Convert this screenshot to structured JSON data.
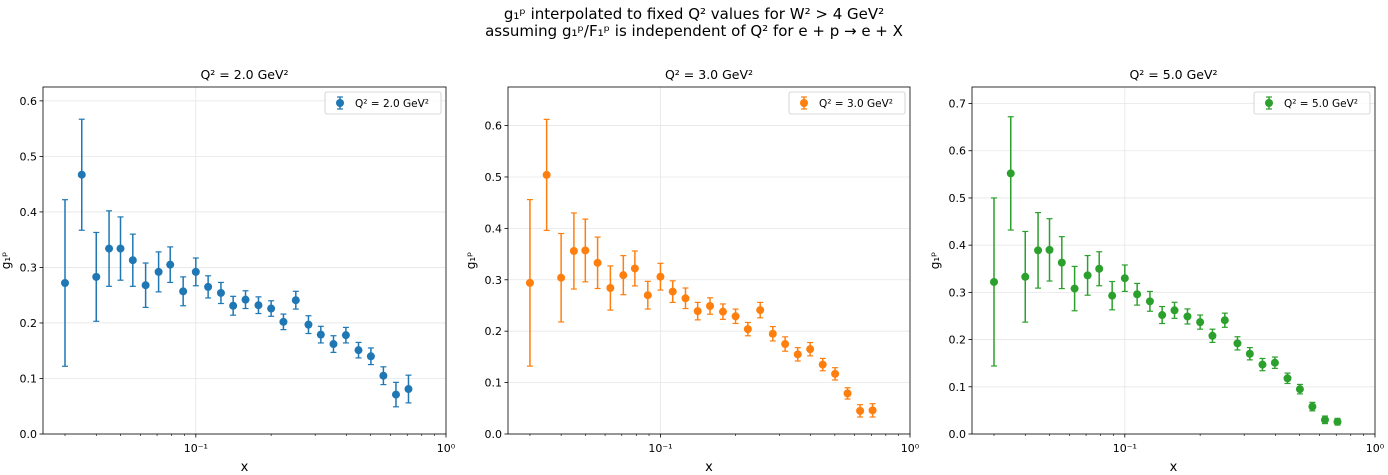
{
  "figure": {
    "suptitle_line1": "g₁ᵖ interpolated to fixed Q² values for W² > 4 GeV²",
    "suptitle_line2": "assuming g₁ᵖ/F₁ᵖ is independent of Q² for e + p → e + X"
  },
  "chart_data": [
    {
      "type": "scatter",
      "title": "Q² = 2.0 GeV²",
      "xlabel": "x",
      "ylabel": "g₁ᵖ",
      "xscale": "log",
      "xlim": [
        0.0245,
        1.0
      ],
      "ylim": [
        0.0,
        0.625
      ],
      "xticks": [
        0.1,
        1.0
      ],
      "xtick_labels": [
        "10⁻¹",
        "10⁰"
      ],
      "yticks": [
        0.0,
        0.1,
        0.2,
        0.3,
        0.4,
        0.5,
        0.6
      ],
      "ytick_labels": [
        "0.0",
        "0.1",
        "0.2",
        "0.3",
        "0.4",
        "0.5",
        "0.6"
      ],
      "grid": true,
      "legend_position": "top-right",
      "color": "#1f77b4",
      "series": [
        {
          "name": "Q² = 2.0 GeV²",
          "x": [
            0.03,
            0.035,
            0.04,
            0.045,
            0.05,
            0.056,
            0.063,
            0.071,
            0.079,
            0.089,
            0.1,
            0.112,
            0.126,
            0.141,
            0.158,
            0.178,
            0.2,
            0.224,
            0.251,
            0.282,
            0.316,
            0.355,
            0.398,
            0.447,
            0.501,
            0.562,
            0.631,
            0.708
          ],
          "y": [
            0.272,
            0.467,
            0.283,
            0.334,
            0.334,
            0.313,
            0.268,
            0.292,
            0.305,
            0.257,
            0.292,
            0.265,
            0.254,
            0.231,
            0.242,
            0.232,
            0.226,
            0.202,
            0.241,
            0.197,
            0.179,
            0.162,
            0.178,
            0.151,
            0.14,
            0.105,
            0.071,
            0.081
          ],
          "yerr": [
            0.15,
            0.1,
            0.08,
            0.068,
            0.057,
            0.047,
            0.04,
            0.036,
            0.032,
            0.026,
            0.025,
            0.02,
            0.019,
            0.017,
            0.016,
            0.015,
            0.014,
            0.014,
            0.016,
            0.016,
            0.015,
            0.015,
            0.014,
            0.014,
            0.015,
            0.016,
            0.022,
            0.025
          ]
        }
      ]
    },
    {
      "type": "scatter",
      "title": "Q² = 3.0 GeV²",
      "xlabel": "x",
      "ylabel": "g₁ᵖ",
      "xscale": "log",
      "xlim": [
        0.0245,
        1.0
      ],
      "ylim": [
        0.0,
        0.675
      ],
      "xticks": [
        0.1,
        1.0
      ],
      "xtick_labels": [
        "10⁻¹",
        "10⁰"
      ],
      "yticks": [
        0.0,
        0.1,
        0.2,
        0.3,
        0.4,
        0.5,
        0.6
      ],
      "ytick_labels": [
        "0.0",
        "0.1",
        "0.2",
        "0.3",
        "0.4",
        "0.5",
        "0.6"
      ],
      "grid": true,
      "legend_position": "top-right",
      "color": "#ff7f0e",
      "series": [
        {
          "name": "Q² = 3.0 GeV²",
          "x": [
            0.03,
            0.035,
            0.04,
            0.045,
            0.05,
            0.056,
            0.063,
            0.071,
            0.079,
            0.089,
            0.1,
            0.112,
            0.126,
            0.141,
            0.158,
            0.178,
            0.2,
            0.224,
            0.251,
            0.282,
            0.316,
            0.355,
            0.398,
            0.447,
            0.501,
            0.562,
            0.631,
            0.708
          ],
          "y": [
            0.294,
            0.504,
            0.304,
            0.356,
            0.357,
            0.333,
            0.284,
            0.309,
            0.322,
            0.27,
            0.306,
            0.277,
            0.264,
            0.239,
            0.249,
            0.238,
            0.229,
            0.204,
            0.241,
            0.195,
            0.175,
            0.155,
            0.165,
            0.135,
            0.117,
            0.079,
            0.045,
            0.046
          ],
          "yerr": [
            0.162,
            0.108,
            0.086,
            0.074,
            0.061,
            0.05,
            0.043,
            0.038,
            0.034,
            0.027,
            0.026,
            0.021,
            0.02,
            0.017,
            0.016,
            0.015,
            0.014,
            0.013,
            0.015,
            0.014,
            0.014,
            0.013,
            0.013,
            0.012,
            0.012,
            0.011,
            0.012,
            0.013
          ]
        }
      ]
    },
    {
      "type": "scatter",
      "title": "Q² = 5.0 GeV²",
      "xlabel": "x",
      "ylabel": "g₁ᵖ",
      "xscale": "log",
      "xlim": [
        0.0245,
        1.0
      ],
      "ylim": [
        0.0,
        0.735
      ],
      "xticks": [
        0.1,
        1.0
      ],
      "xtick_labels": [
        "10⁻¹",
        "10⁰"
      ],
      "yticks": [
        0.0,
        0.1,
        0.2,
        0.3,
        0.4,
        0.5,
        0.6,
        0.7
      ],
      "ytick_labels": [
        "0.0",
        "0.1",
        "0.2",
        "0.3",
        "0.4",
        "0.5",
        "0.6",
        "0.7"
      ],
      "grid": true,
      "legend_position": "top-right",
      "color": "#2ca02c",
      "series": [
        {
          "name": "Q² = 5.0 GeV²",
          "x": [
            0.03,
            0.035,
            0.04,
            0.045,
            0.05,
            0.056,
            0.063,
            0.071,
            0.079,
            0.089,
            0.1,
            0.112,
            0.126,
            0.141,
            0.158,
            0.178,
            0.2,
            0.224,
            0.251,
            0.282,
            0.316,
            0.355,
            0.398,
            0.447,
            0.501,
            0.562,
            0.631,
            0.708
          ],
          "y": [
            0.322,
            0.552,
            0.333,
            0.389,
            0.39,
            0.363,
            0.308,
            0.336,
            0.35,
            0.293,
            0.33,
            0.296,
            0.281,
            0.252,
            0.262,
            0.249,
            0.237,
            0.208,
            0.241,
            0.192,
            0.17,
            0.147,
            0.151,
            0.118,
            0.095,
            0.058,
            0.03,
            0.026
          ],
          "yerr": [
            0.178,
            0.12,
            0.096,
            0.08,
            0.066,
            0.055,
            0.047,
            0.042,
            0.036,
            0.03,
            0.028,
            0.023,
            0.021,
            0.018,
            0.017,
            0.016,
            0.015,
            0.014,
            0.015,
            0.014,
            0.013,
            0.013,
            0.012,
            0.011,
            0.01,
            0.009,
            0.008,
            0.007
          ]
        }
      ]
    }
  ]
}
